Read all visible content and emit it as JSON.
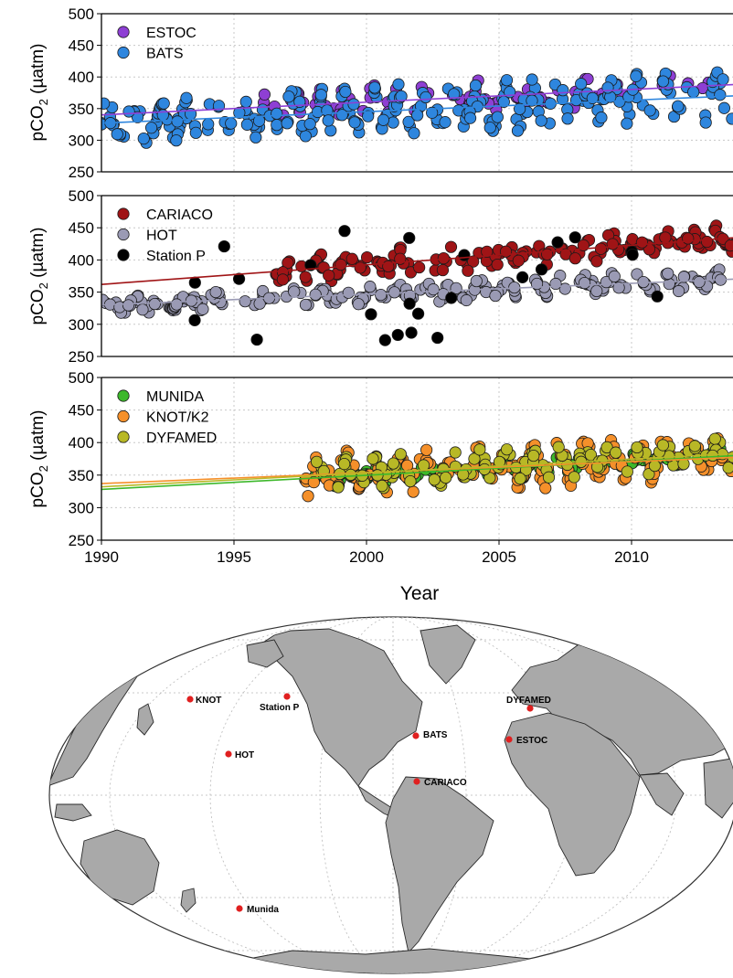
{
  "chart_data": [
    {
      "type": "scatter",
      "ylabel_main": "pCO",
      "ylabel_sub": "2",
      "ylabel_unit": " (µatm)",
      "ylim": [
        250,
        500
      ],
      "yticks": [
        "250",
        "300",
        "350",
        "400",
        "450",
        "500"
      ],
      "xlim": [
        1990,
        2014
      ],
      "grid": true,
      "legend_position": "top-left",
      "series": [
        {
          "name": "ESTOC",
          "color": "#8e3fd4",
          "trend": [
            [
              1990,
              340
            ],
            [
              2014,
              389
            ]
          ]
        },
        {
          "name": "BATS",
          "color": "#2e86de",
          "trend": [
            [
              1990,
              327
            ],
            [
              2014,
              371
            ]
          ]
        }
      ]
    },
    {
      "type": "scatter",
      "ylabel_main": "pCO",
      "ylabel_sub": "2",
      "ylabel_unit": " (µatm)",
      "ylim": [
        250,
        500
      ],
      "yticks": [
        "250",
        "300",
        "350",
        "400",
        "450",
        "500"
      ],
      "xlim": [
        1990,
        2014
      ],
      "grid": true,
      "legend_position": "top-left",
      "series": [
        {
          "name": "CARIACO",
          "color": "#a01416",
          "trend": [
            [
              1990,
              362
            ],
            [
              2014,
              436
            ]
          ]
        },
        {
          "name": "HOT",
          "color": "#9a9ab4",
          "trend": [
            [
              1990,
              330
            ],
            [
              2014,
              371
            ]
          ]
        },
        {
          "name": "Station P",
          "color": "#000000",
          "trend": null
        }
      ]
    },
    {
      "type": "scatter",
      "ylabel_main": "pCO",
      "ylabel_sub": "2",
      "ylabel_unit": " (µatm)",
      "ylim": [
        250,
        500
      ],
      "yticks": [
        "250",
        "300",
        "350",
        "400",
        "450",
        "500"
      ],
      "xlim": [
        1990,
        2014
      ],
      "xticks": [
        "1990",
        "1995",
        "2000",
        "2005",
        "2010"
      ],
      "xlabel": "Year",
      "grid": true,
      "legend_position": "top-left",
      "series": [
        {
          "name": "MUNIDA",
          "color": "#3db82b",
          "trend": [
            [
              1990,
              328
            ],
            [
              2014,
              381
            ]
          ]
        },
        {
          "name": "KNOT/K2",
          "color": "#f5902a",
          "trend": [
            [
              1990,
              337
            ],
            [
              2014,
              378
            ]
          ]
        },
        {
          "name": "DYFAMED",
          "color": "#b8b826",
          "trend": [
            [
              1990,
              332
            ],
            [
              2014,
              384
            ]
          ]
        }
      ]
    }
  ],
  "map": {
    "land_color": "#a9a9a9",
    "marker_color": "#e02020",
    "stations": [
      {
        "label": "KNOT"
      },
      {
        "label": "Station P"
      },
      {
        "label": "HOT"
      },
      {
        "label": "BATS"
      },
      {
        "label": "ESTOC"
      },
      {
        "label": "DYFAMED"
      },
      {
        "label": "CARIACO"
      },
      {
        "label": "Munida"
      }
    ]
  }
}
